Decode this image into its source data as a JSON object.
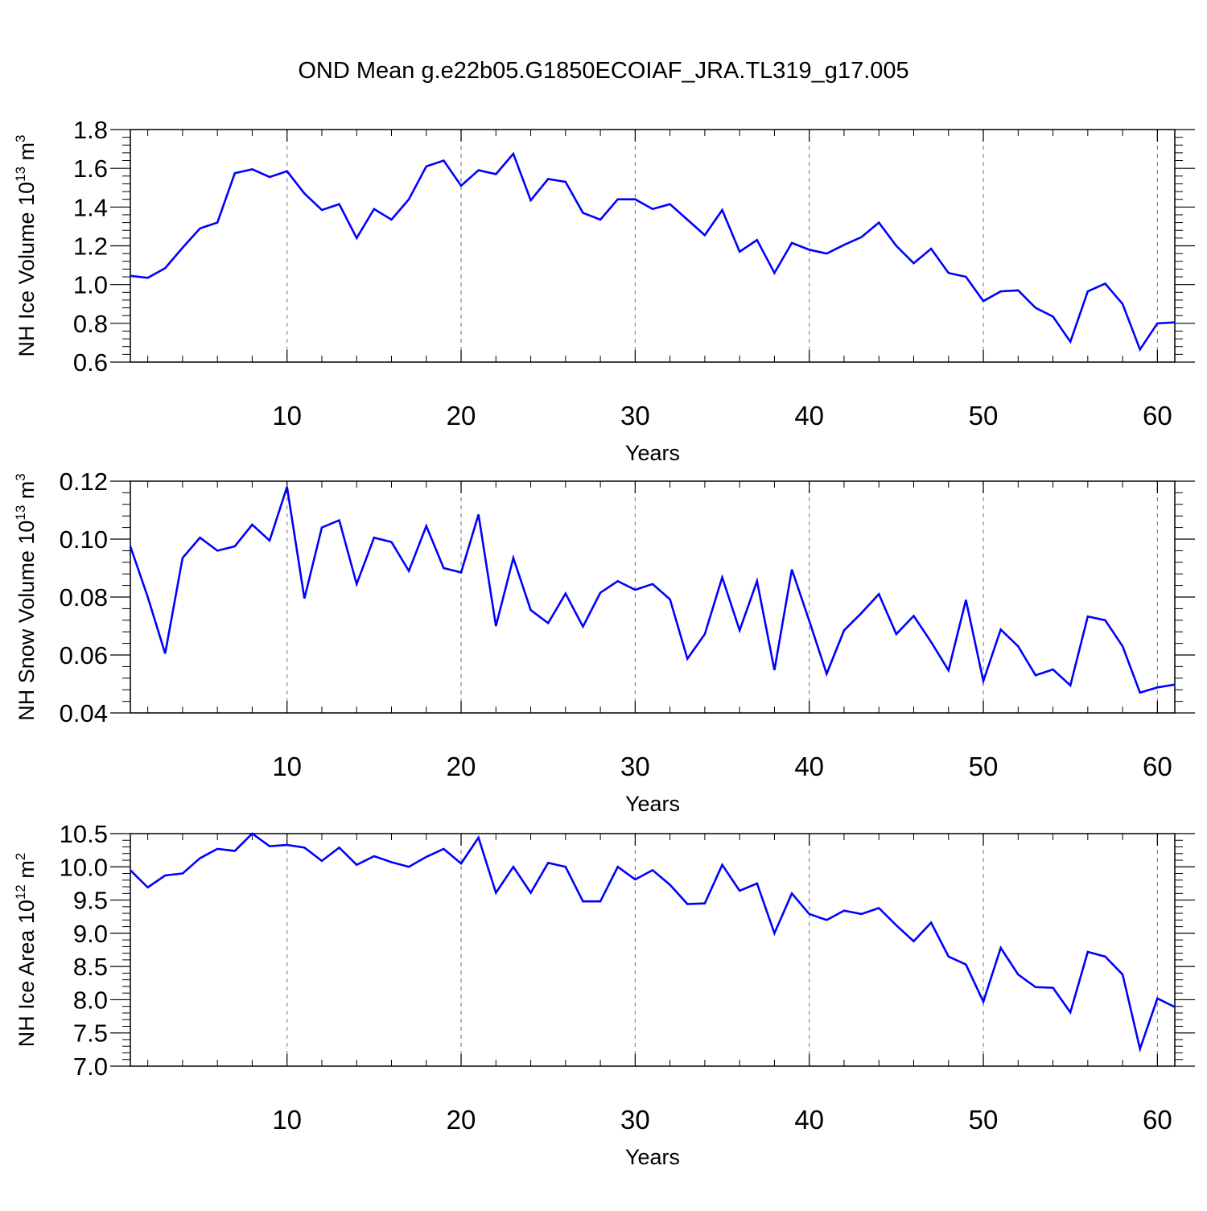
{
  "title": "OND Mean g.e22b05.G1850ECOIAF_JRA.TL319_g17.005",
  "colors": {
    "line": "#0000ff",
    "axis": "#000000",
    "grid": "#888888",
    "background": "#ffffff"
  },
  "chart_data": [
    {
      "type": "line",
      "ylabel_main": "NH Ice Volume 10",
      "ylabel_exp": "13",
      "ylabel_unit": " m",
      "ylabel_unit_exp": "3",
      "xlabel": "Years",
      "xlim": [
        1,
        61
      ],
      "ylim": [
        0.6,
        1.8
      ],
      "xticks": [
        10,
        20,
        30,
        40,
        50,
        60
      ],
      "xtick_labels": [
        "10",
        "20",
        "30",
        "40",
        "50",
        "60"
      ],
      "yticks": [
        0.6,
        0.8,
        1.0,
        1.2,
        1.4,
        1.6,
        1.8
      ],
      "ytick_labels": [
        "0.6",
        "0.8",
        "1.0",
        "1.2",
        "1.4",
        "1.6",
        "1.8"
      ],
      "grid": "vertical dashed",
      "series": [
        {
          "name": "NH Ice Volume",
          "values": [
            1.045,
            1.035,
            1.085,
            1.19,
            1.29,
            1.32,
            1.575,
            1.595,
            1.555,
            1.585,
            1.47,
            1.385,
            1.415,
            1.24,
            1.39,
            1.335,
            1.44,
            1.61,
            1.64,
            1.51,
            1.59,
            1.57,
            1.675,
            1.435,
            1.545,
            1.53,
            1.37,
            1.335,
            1.44,
            1.44,
            1.39,
            1.415,
            1.335,
            1.255,
            1.385,
            1.17,
            1.23,
            1.06,
            1.215,
            1.18,
            1.16,
            1.205,
            1.245,
            1.32,
            1.2,
            1.11,
            1.185,
            1.06,
            1.04,
            0.915,
            0.965,
            0.97,
            0.88,
            0.835,
            0.705,
            0.965,
            1.005,
            0.9,
            0.665,
            0.8,
            0.805
          ]
        }
      ]
    },
    {
      "type": "line",
      "ylabel_main": "NH Snow Volume 10",
      "ylabel_exp": "13",
      "ylabel_unit": " m",
      "ylabel_unit_exp": "3",
      "xlabel": "Years",
      "xlim": [
        1,
        61
      ],
      "ylim": [
        0.04,
        0.12
      ],
      "xticks": [
        10,
        20,
        30,
        40,
        50,
        60
      ],
      "xtick_labels": [
        "10",
        "20",
        "30",
        "40",
        "50",
        "60"
      ],
      "yticks": [
        0.04,
        0.06,
        0.08,
        0.1,
        0.12
      ],
      "ytick_labels": [
        "0.04",
        "0.06",
        "0.08",
        "0.10",
        "0.12"
      ],
      "grid": "vertical dashed",
      "series": [
        {
          "name": "NH Snow Volume",
          "values": [
            0.0975,
            0.08,
            0.0605,
            0.0935,
            0.1005,
            0.096,
            0.0975,
            0.105,
            0.0995,
            0.118,
            0.0795,
            0.104,
            0.1065,
            0.0845,
            0.1005,
            0.099,
            0.089,
            0.1045,
            0.09,
            0.0885,
            0.1085,
            0.07,
            0.0935,
            0.0755,
            0.071,
            0.0812,
            0.0698,
            0.0815,
            0.0855,
            0.0825,
            0.0845,
            0.0792,
            0.0587,
            0.0672,
            0.0868,
            0.0685,
            0.0855,
            0.0548,
            0.0895,
            0.0718,
            0.0535,
            0.0685,
            0.0745,
            0.081,
            0.0672,
            0.0735,
            0.0645,
            0.0547,
            0.079,
            0.051,
            0.0688,
            0.063,
            0.053,
            0.055,
            0.0495,
            0.0733,
            0.072,
            0.063,
            0.047,
            0.0488,
            0.0498
          ]
        }
      ]
    },
    {
      "type": "line",
      "ylabel_main": "NH Ice Area 10",
      "ylabel_exp": "12",
      "ylabel_unit": " m",
      "ylabel_unit_exp": "2",
      "xlabel": "Years",
      "xlim": [
        1,
        61
      ],
      "ylim": [
        7.0,
        10.5
      ],
      "xticks": [
        10,
        20,
        30,
        40,
        50,
        60
      ],
      "xtick_labels": [
        "10",
        "20",
        "30",
        "40",
        "50",
        "60"
      ],
      "yticks": [
        7.0,
        7.5,
        8.0,
        8.5,
        9.0,
        9.5,
        10.0,
        10.5
      ],
      "ytick_labels": [
        "7.0",
        "7.5",
        "8.0",
        "8.5",
        "9.0",
        "9.5",
        "10.0",
        "10.5"
      ],
      "grid": "vertical dashed",
      "series": [
        {
          "name": "NH Ice Area",
          "values": [
            9.95,
            9.69,
            9.87,
            9.9,
            10.13,
            10.27,
            10.24,
            10.5,
            10.31,
            10.33,
            10.29,
            10.09,
            10.29,
            10.03,
            10.16,
            10.07,
            10.0,
            10.15,
            10.27,
            10.05,
            10.44,
            9.61,
            10.0,
            9.61,
            10.06,
            10.0,
            9.48,
            9.48,
            10.0,
            9.81,
            9.95,
            9.73,
            9.44,
            9.45,
            10.03,
            9.64,
            9.75,
            9.0,
            9.6,
            9.29,
            9.2,
            9.34,
            9.29,
            9.38,
            9.12,
            8.88,
            9.16,
            8.65,
            8.53,
            7.97,
            8.78,
            8.38,
            8.19,
            8.18,
            7.81,
            8.72,
            8.65,
            8.38,
            7.26,
            8.02,
            7.89
          ]
        }
      ]
    }
  ]
}
